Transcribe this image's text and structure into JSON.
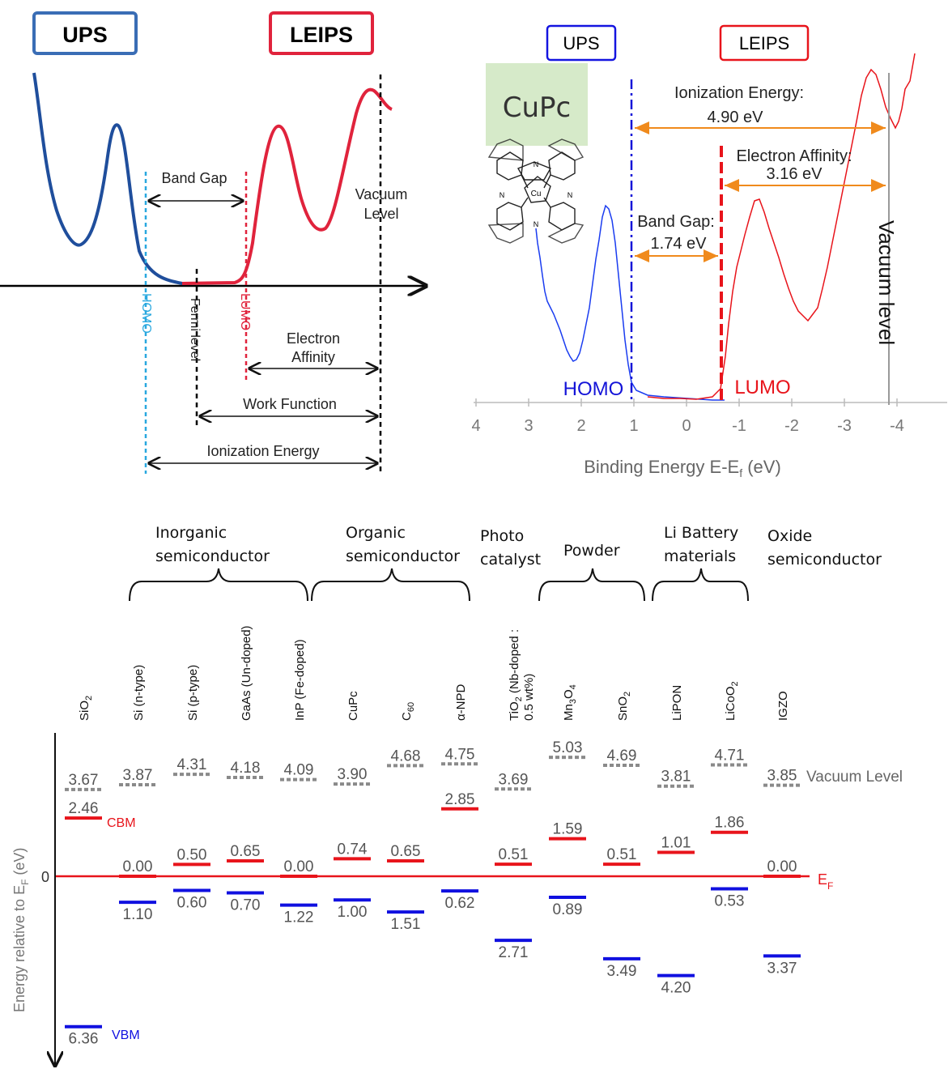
{
  "schematic": {
    "ups_badge": "UPS",
    "leips_badge": "LEIPS",
    "band_gap": "Band Gap",
    "vacuum_level_1": "Vacuum",
    "vacuum_level_2": "Level",
    "homo": "HOMO",
    "fermi": "Fermi level",
    "lumo": "LUMO",
    "electron_affinity_1": "Electron",
    "electron_affinity_2": "Affinity",
    "work_function": "Work Function",
    "ionization_energy": "Ionization Energy",
    "colors": {
      "ups": "#1f4e9c",
      "leips": "#e0233c",
      "homo_line": "#29a8df",
      "lumo_line": "#e0233c"
    }
  },
  "cupc_plot": {
    "ups_badge": "UPS",
    "leips_badge": "LEIPS",
    "sample_label": "CuPc",
    "ionization_energy_label": "Ionization Energy:",
    "ionization_energy_value": "4.90 eV",
    "electron_affinity_label": "Electron Affinity:",
    "electron_affinity_value": "3.16 eV",
    "band_gap_label": "Band Gap:",
    "band_gap_value": "1.74 eV",
    "homo": "HOMO",
    "lumo": "LUMO",
    "vacuum_level": "Vacuum level",
    "xaxis_ticks": [
      "4",
      "3",
      "2",
      "1",
      "0",
      "-1",
      "-2",
      "-3",
      "-4"
    ],
    "xaxis_label_main": "Binding Energy E-E",
    "xaxis_label_sub": "f",
    "xaxis_label_unit": " (eV)",
    "molecule_center_label": "Cu",
    "molecule_n_label": "N"
  },
  "chart_data": {
    "type": "energy-level diagram",
    "ylabel": "Energy relative to E",
    "ylabel_sub": "F",
    "ylabel_unit": " (eV)",
    "zero_label": "0",
    "ef_label": "E",
    "ef_sub": "F",
    "vacuum_level_label": "Vacuum Level",
    "cbm_label": "CBM",
    "vbm_label": "VBM",
    "groups": [
      {
        "title_1": "Inorganic",
        "title_2": "semiconductor"
      },
      {
        "title_1": "Organic",
        "title_2": "semiconductor"
      },
      {
        "title_1": "Photo",
        "title_2": "catalyst"
      },
      {
        "title_1": "Powder",
        "title_2": ""
      },
      {
        "title_1": "Li Battery",
        "title_2": "materials"
      },
      {
        "title_1": "Oxide",
        "title_2": "semiconductor"
      }
    ],
    "materials": [
      {
        "name": "SiO",
        "sub": "2",
        "tail": "",
        "vacuum": "3.67",
        "cbm": "2.46",
        "vbm": "6.36"
      },
      {
        "name": "Si (n-type)",
        "sub": "",
        "tail": "",
        "vacuum": "3.87",
        "cbm": "0.00",
        "vbm": "1.10"
      },
      {
        "name": "Si (p-type)",
        "sub": "",
        "tail": "",
        "vacuum": "4.31",
        "cbm": "0.50",
        "vbm": "0.60"
      },
      {
        "name": "GaAs (Un-doped)",
        "sub": "",
        "tail": "",
        "vacuum": "4.18",
        "cbm": "0.65",
        "vbm": "0.70"
      },
      {
        "name": "InP (Fe-doped)",
        "sub": "",
        "tail": "",
        "vacuum": "4.09",
        "cbm": "0.00",
        "vbm": "1.22"
      },
      {
        "name": "CuPc",
        "sub": "",
        "tail": "",
        "vacuum": "3.90",
        "cbm": "0.74",
        "vbm": "1.00"
      },
      {
        "name": "C",
        "sub": "60",
        "tail": "",
        "vacuum": "4.68",
        "cbm": "0.65",
        "vbm": "1.51"
      },
      {
        "name": "α-NPD",
        "sub": "",
        "tail": "",
        "vacuum": "4.75",
        "cbm": "2.85",
        "vbm": "0.62"
      },
      {
        "name": "TiO",
        "sub": "2",
        "tail": " (Nb-doped :",
        "line2": "0.5 wt%)",
        "vacuum": "3.69",
        "cbm": "0.51",
        "vbm": "2.71"
      },
      {
        "name": "Mn",
        "sub": "3",
        "tail": "O",
        "sub2": "4",
        "vacuum": "5.03",
        "cbm": "1.59",
        "vbm": "0.89"
      },
      {
        "name": "SnO",
        "sub": "2",
        "tail": "",
        "vacuum": "4.69",
        "cbm": "0.51",
        "vbm": "3.49"
      },
      {
        "name": "LiPON",
        "sub": "",
        "tail": "",
        "vacuum": "3.81",
        "cbm": "1.01",
        "vbm": "4.20"
      },
      {
        "name": "LiCoO",
        "sub": "2",
        "tail": "",
        "vacuum": "4.71",
        "cbm": "1.86",
        "vbm": "0.53"
      },
      {
        "name": "IGZO",
        "sub": "",
        "tail": "",
        "vacuum": "3.85",
        "cbm": "0.00",
        "vbm": "3.37"
      }
    ],
    "colors": {
      "cbm": "#e8141b",
      "vbm": "#1010e0",
      "vacuum": "#8a8a8a",
      "ef": "#e8141b"
    }
  }
}
